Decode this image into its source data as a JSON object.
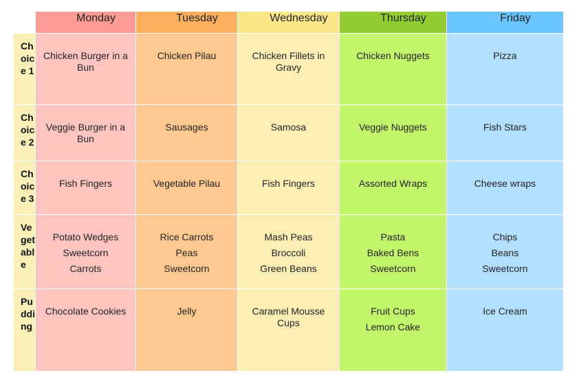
{
  "days": [
    {
      "label": "Monday",
      "header_color": "#fc9a94",
      "cell_color": "#fec5c0"
    },
    {
      "label": "Tuesday",
      "header_color": "#feb05e",
      "cell_color": "#fec891"
    },
    {
      "label": "Wednesday",
      "header_color": "#fce68a",
      "cell_color": "#fcefb6"
    },
    {
      "label": "Thursday",
      "header_color": "#92cd32",
      "cell_color": "#c3f56a"
    },
    {
      "label": "Friday",
      "header_color": "#6ac5fe",
      "cell_color": "#b3e0fe"
    }
  ],
  "rows": [
    {
      "label": "Choice 1",
      "cells": [
        [
          "Chicken Burger in a Bun"
        ],
        [
          "Chicken Pilau"
        ],
        [
          "Chicken Fillets in Gravy"
        ],
        [
          "Chicken Nuggets"
        ],
        [
          "Pizza"
        ]
      ]
    },
    {
      "label": "Choice 2",
      "cells": [
        [
          "Veggie Burger in a Bun"
        ],
        [
          "Sausages"
        ],
        [
          "Samosa"
        ],
        [
          "Veggie Nuggets"
        ],
        [
          "Fish Stars"
        ]
      ]
    },
    {
      "label": "Choice 3",
      "cells": [
        [
          "Fish Fingers"
        ],
        [
          "Vegetable Pilau"
        ],
        [
          "Fish Fingers"
        ],
        [
          "Assorted Wraps"
        ],
        [
          "Cheese wraps"
        ]
      ]
    },
    {
      "label": "Vegetable",
      "cells": [
        [
          "Potato Wedges",
          "Sweetcorn",
          "Carrots"
        ],
        [
          "Rice Carrots",
          "Peas",
          "Sweetcorn"
        ],
        [
          "Mash Peas",
          "Broccoli",
          "Green Beans"
        ],
        [
          "Pasta",
          "Baked Bens",
          "Sweetcorn"
        ],
        [
          "Chips",
          "Beans",
          "Sweetcorn"
        ]
      ]
    },
    {
      "label": "Pudding",
      "cells": [
        [
          "Chocolate Cookies"
        ],
        [
          "Jelly"
        ],
        [
          "Caramel Mousse Cups"
        ],
        [
          "Fruit Cups",
          "Lemon Cake"
        ],
        [
          "Ice Cream"
        ]
      ]
    }
  ]
}
